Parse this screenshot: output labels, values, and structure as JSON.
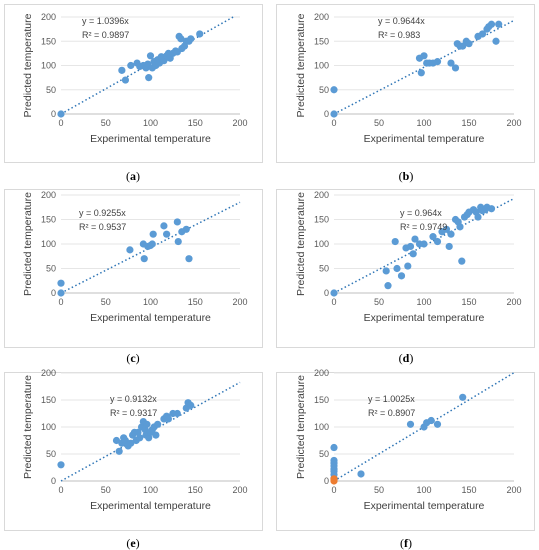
{
  "axes": {
    "xlabel": "Experimental temperature",
    "ylabel": "Predicted temperature",
    "ticks": [
      "0",
      "50",
      "100",
      "150",
      "200"
    ],
    "xlim": [
      0,
      200
    ],
    "ylim": [
      0,
      200
    ]
  },
  "colors": {
    "points": "#5b9bd5",
    "trendline": "#2e75b6",
    "orange_points": "#ed7d31"
  },
  "chart_data": [
    {
      "type": "scatter",
      "caption": "(a)",
      "equation": "y = 1.0396x",
      "r2": "R² = 0.9897",
      "slope": 1.0396,
      "points": [
        [
          0,
          0
        ],
        [
          68,
          90
        ],
        [
          72,
          70
        ],
        [
          78,
          100
        ],
        [
          85,
          105
        ],
        [
          88,
          98
        ],
        [
          92,
          100
        ],
        [
          95,
          95
        ],
        [
          97,
          103
        ],
        [
          98,
          75
        ],
        [
          100,
          120
        ],
        [
          102,
          95
        ],
        [
          104,
          108
        ],
        [
          106,
          100
        ],
        [
          108,
          112
        ],
        [
          110,
          105
        ],
        [
          112,
          118
        ],
        [
          115,
          110
        ],
        [
          118,
          120
        ],
        [
          120,
          125
        ],
        [
          122,
          115
        ],
        [
          125,
          125
        ],
        [
          128,
          130
        ],
        [
          130,
          128
        ],
        [
          132,
          160
        ],
        [
          134,
          155
        ],
        [
          135,
          135
        ],
        [
          138,
          140
        ],
        [
          140,
          150
        ],
        [
          143,
          150
        ],
        [
          145,
          155
        ],
        [
          155,
          165
        ]
      ]
    },
    {
      "type": "scatter",
      "caption": "(b)",
      "equation": "y = 0.9644x",
      "r2": "R² = 0.983",
      "slope": 0.9644,
      "points": [
        [
          0,
          0
        ],
        [
          0,
          50
        ],
        [
          95,
          115
        ],
        [
          97,
          85
        ],
        [
          100,
          120
        ],
        [
          103,
          105
        ],
        [
          106,
          105
        ],
        [
          110,
          105
        ],
        [
          115,
          108
        ],
        [
          130,
          105
        ],
        [
          135,
          95
        ],
        [
          137,
          145
        ],
        [
          140,
          140
        ],
        [
          143,
          140
        ],
        [
          147,
          150
        ],
        [
          150,
          145
        ],
        [
          160,
          160
        ],
        [
          165,
          165
        ],
        [
          170,
          175
        ],
        [
          172,
          180
        ],
        [
          175,
          185
        ],
        [
          180,
          150
        ],
        [
          183,
          185
        ]
      ]
    },
    {
      "type": "scatter",
      "caption": "(c)",
      "equation": "y = 0.9255x",
      "r2": "R² = 0.9537",
      "slope": 0.9255,
      "points": [
        [
          0,
          0
        ],
        [
          0,
          20
        ],
        [
          77,
          88
        ],
        [
          92,
          100
        ],
        [
          93,
          70
        ],
        [
          97,
          95
        ],
        [
          100,
          97
        ],
        [
          102,
          100
        ],
        [
          103,
          120
        ],
        [
          115,
          137
        ],
        [
          118,
          120
        ],
        [
          130,
          145
        ],
        [
          131,
          105
        ],
        [
          135,
          125
        ],
        [
          140,
          130
        ],
        [
          143,
          70
        ]
      ]
    },
    {
      "type": "scatter",
      "caption": "(d)",
      "equation": "y = 0.964x",
      "r2": "R² = 0.9749",
      "slope": 0.964,
      "points": [
        [
          0,
          0
        ],
        [
          58,
          45
        ],
        [
          60,
          15
        ],
        [
          68,
          105
        ],
        [
          70,
          50
        ],
        [
          75,
          35
        ],
        [
          80,
          92
        ],
        [
          82,
          55
        ],
        [
          85,
          95
        ],
        [
          88,
          80
        ],
        [
          90,
          110
        ],
        [
          95,
          100
        ],
        [
          100,
          100
        ],
        [
          110,
          115
        ],
        [
          115,
          105
        ],
        [
          120,
          125
        ],
        [
          125,
          130
        ],
        [
          128,
          95
        ],
        [
          130,
          120
        ],
        [
          135,
          150
        ],
        [
          138,
          145
        ],
        [
          140,
          135
        ],
        [
          142,
          65
        ],
        [
          145,
          155
        ],
        [
          148,
          160
        ],
        [
          150,
          165
        ],
        [
          155,
          170
        ],
        [
          158,
          165
        ],
        [
          160,
          155
        ],
        [
          163,
          175
        ],
        [
          165,
          168
        ],
        [
          168,
          170
        ],
        [
          170,
          175
        ],
        [
          175,
          172
        ]
      ]
    },
    {
      "type": "scatter",
      "caption": "(e)",
      "equation": "y = 0.9132x",
      "r2": "R² = 0.9317",
      "slope": 0.9132,
      "points": [
        [
          0,
          30
        ],
        [
          62,
          75
        ],
        [
          65,
          55
        ],
        [
          68,
          70
        ],
        [
          70,
          80
        ],
        [
          72,
          75
        ],
        [
          75,
          65
        ],
        [
          78,
          70
        ],
        [
          80,
          85
        ],
        [
          82,
          90
        ],
        [
          84,
          75
        ],
        [
          86,
          90
        ],
        [
          88,
          80
        ],
        [
          90,
          100
        ],
        [
          92,
          110
        ],
        [
          94,
          95
        ],
        [
          95,
          85
        ],
        [
          96,
          105
        ],
        [
          98,
          80
        ],
        [
          100,
          90
        ],
        [
          102,
          95
        ],
        [
          104,
          100
        ],
        [
          106,
          85
        ],
        [
          108,
          105
        ],
        [
          115,
          115
        ],
        [
          118,
          120
        ],
        [
          120,
          115
        ],
        [
          125,
          125
        ],
        [
          130,
          125
        ],
        [
          140,
          135
        ],
        [
          142,
          145
        ],
        [
          145,
          140
        ]
      ]
    },
    {
      "type": "scatter",
      "caption": "(f)",
      "equation": "y = 1.0025x",
      "r2": "R² = 0.8907",
      "slope": 1.0025,
      "points": [
        [
          0,
          5
        ],
        [
          0,
          12
        ],
        [
          0,
          18
        ],
        [
          0,
          22
        ],
        [
          0,
          28
        ],
        [
          0,
          33
        ],
        [
          0,
          38
        ],
        [
          0,
          62
        ],
        [
          30,
          13
        ],
        [
          85,
          105
        ],
        [
          100,
          100
        ],
        [
          103,
          108
        ],
        [
          108,
          112
        ],
        [
          115,
          105
        ],
        [
          143,
          155
        ]
      ],
      "orange_points": [
        [
          0,
          0
        ],
        [
          0,
          2
        ],
        [
          0,
          4
        ]
      ]
    }
  ]
}
